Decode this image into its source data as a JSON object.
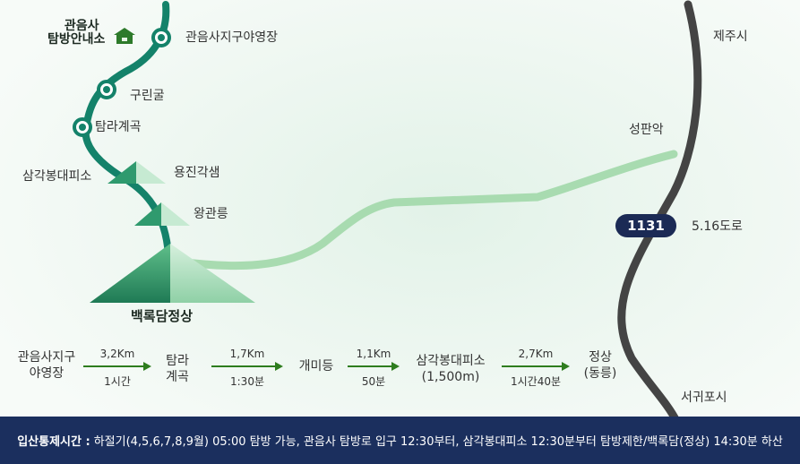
{
  "map": {
    "labels": {
      "info_center": [
        "관음사",
        "탐방안내소"
      ],
      "campground": "관음사지구야영장",
      "gurin_cave": "구린굴",
      "tamra_valley": "탐라계곡",
      "samgakbong": "삼각봉대피소",
      "yongjin": "용진각샘",
      "wanggwan": "왕관릉",
      "summit": "백록담정상",
      "jeju_city": "제주시",
      "seongpanak": "성판악",
      "road_number": "1131",
      "road_516": "5.16도로",
      "seogwipo": "서귀포시"
    },
    "colors": {
      "trail": "#14826a",
      "side_trail": "#a8dbb0",
      "highway": "#444444",
      "badge": "#1b2a55",
      "footer": "#1b2f5e"
    },
    "icons": [
      "house-icon",
      "trail-node-icon",
      "peak-icon"
    ]
  },
  "route": {
    "stops": [
      {
        "line1": "관음사지구",
        "line2": "야영장"
      },
      {
        "line1": "탐라",
        "line2": "계곡"
      },
      {
        "line1": "개미등",
        "line2": ""
      },
      {
        "line1": "삼각봉대피소",
        "line2": "(1,500m)"
      },
      {
        "line1": "정상",
        "line2": "(동릉)"
      }
    ],
    "legs": [
      {
        "distance": "3,2Km",
        "time": "1시간"
      },
      {
        "distance": "1,7Km",
        "time": "1:30분"
      },
      {
        "distance": "1,1Km",
        "time": "50분"
      },
      {
        "distance": "2,7Km",
        "time": "1시간40분"
      }
    ]
  },
  "footer": {
    "title": "입산통제시간 :",
    "text": "하절기(4,5,6,7,8,9월) 05:00 탐방 가능, 관음사 탐방로 입구 12:30부터, 삼각봉대피소 12:30분부터 탐방제한/백록담(정상) 14:30분 하산"
  }
}
